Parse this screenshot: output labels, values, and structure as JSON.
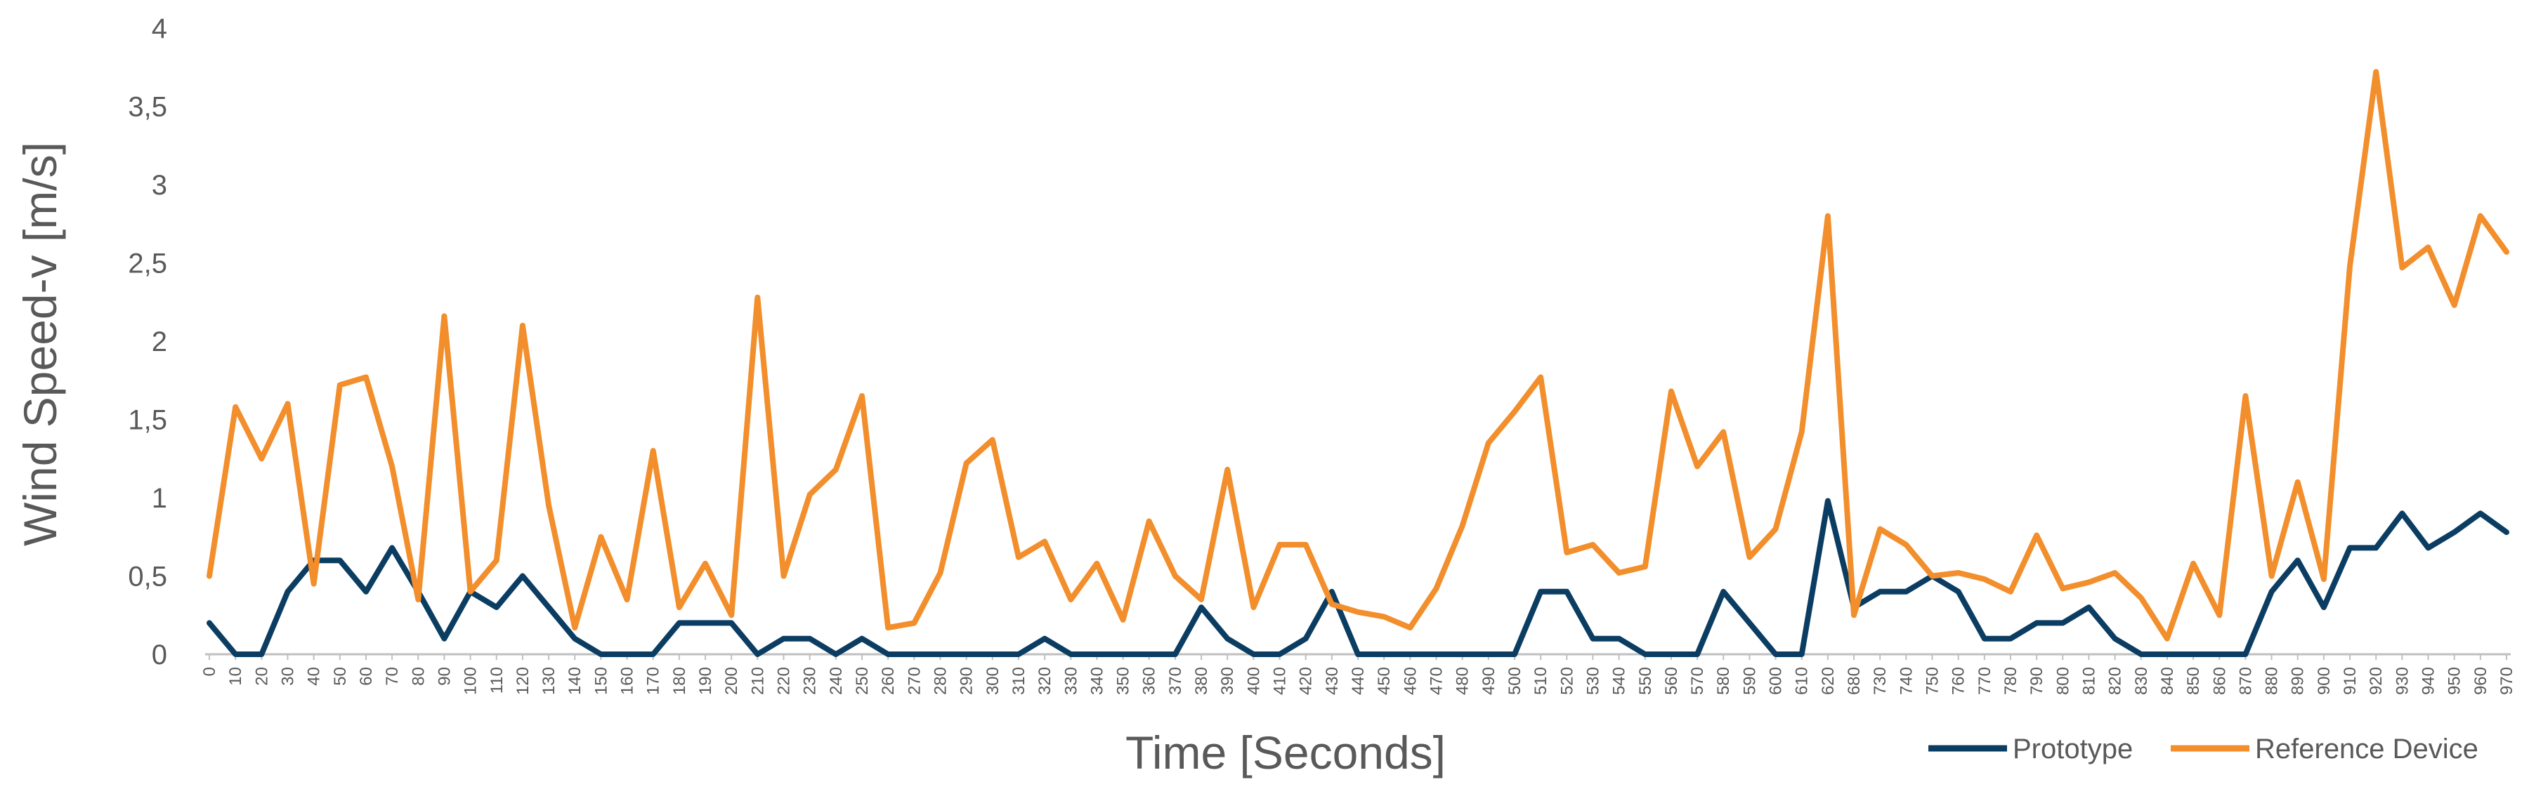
{
  "chart_data": {
    "type": "line",
    "xlabel": "Time [Seconds]",
    "ylabel": "Wind Speed-v [m/s]",
    "ylim": [
      0,
      4
    ],
    "y_ticks": [
      "0",
      "0,5",
      "1",
      "1,5",
      "2",
      "2,5",
      "3",
      "3,5",
      "4"
    ],
    "grid": false,
    "legend_position": "bottom-right",
    "categories": [
      "0",
      "10",
      "20",
      "30",
      "40",
      "50",
      "60",
      "70",
      "80",
      "90",
      "100",
      "110",
      "120",
      "130",
      "140",
      "150",
      "160",
      "170",
      "180",
      "190",
      "200",
      "210",
      "220",
      "230",
      "240",
      "250",
      "260",
      "270",
      "280",
      "290",
      "300",
      "310",
      "320",
      "330",
      "340",
      "350",
      "360",
      "370",
      "380",
      "390",
      "400",
      "410",
      "420",
      "430",
      "440",
      "450",
      "460",
      "470",
      "480",
      "490",
      "500",
      "510",
      "520",
      "530",
      "540",
      "550",
      "560",
      "570",
      "580",
      "590",
      "600",
      "610",
      "620",
      "680",
      "730",
      "740",
      "750",
      "760",
      "770",
      "780",
      "790",
      "800",
      "810",
      "820",
      "830",
      "840",
      "850",
      "860",
      "870",
      "880",
      "890",
      "900",
      "910",
      "920",
      "930",
      "940",
      "950",
      "960",
      "970"
    ],
    "series": [
      {
        "name": "Prototype",
        "color": "#0b3d63",
        "values": [
          0.2,
          0,
          0,
          0.4,
          0.6,
          0.6,
          0.4,
          0.68,
          0.4,
          0.1,
          0.4,
          0.3,
          0.5,
          0.3,
          0.1,
          0,
          0,
          0,
          0.2,
          0.2,
          0.2,
          0,
          0.1,
          0.1,
          0,
          0.1,
          0,
          0,
          0,
          0,
          0,
          0,
          0.1,
          0,
          0,
          0,
          0,
          0,
          0.3,
          0.1,
          0,
          0,
          0.1,
          0.4,
          0,
          0,
          0,
          0,
          0,
          0,
          0,
          0.4,
          0.4,
          0.1,
          0.1,
          0,
          0,
          0,
          0.4,
          0.2,
          0,
          0,
          0.98,
          0.3,
          0.4,
          0.4,
          0.5,
          0.4,
          0.1,
          0.1,
          0.2,
          0.2,
          0.3,
          0.1,
          0,
          0,
          0,
          0,
          0,
          0.4,
          0.6,
          0.3,
          0.68,
          0.68,
          0.9,
          0.68,
          0.78,
          0.9,
          0.78
        ]
      },
      {
        "name": "Reference Device",
        "color": "#f28e2b",
        "values": [
          0.5,
          1.58,
          1.25,
          1.6,
          0.45,
          1.72,
          1.77,
          1.2,
          0.35,
          2.16,
          0.4,
          0.6,
          2.1,
          0.95,
          0.17,
          0.75,
          0.35,
          1.3,
          0.3,
          0.58,
          0.25,
          2.28,
          0.5,
          1.02,
          1.18,
          1.65,
          0.17,
          0.2,
          0.52,
          1.22,
          1.37,
          0.62,
          0.72,
          0.35,
          0.58,
          0.22,
          0.85,
          0.5,
          0.35,
          1.18,
          0.3,
          0.7,
          0.7,
          0.32,
          0.27,
          0.24,
          0.17,
          0.42,
          0.82,
          1.35,
          1.55,
          1.77,
          0.65,
          0.7,
          0.52,
          0.56,
          1.68,
          1.2,
          1.42,
          0.62,
          0.8,
          1.42,
          2.8,
          0.25,
          0.8,
          0.7,
          0.5,
          0.52,
          0.48,
          0.4,
          0.76,
          0.42,
          0.46,
          0.52,
          0.36,
          0.1,
          0.58,
          0.25,
          1.65,
          0.5,
          1.1,
          0.48,
          2.48,
          3.72,
          2.47,
          2.6,
          2.23,
          2.8,
          2.57
        ]
      }
    ]
  }
}
